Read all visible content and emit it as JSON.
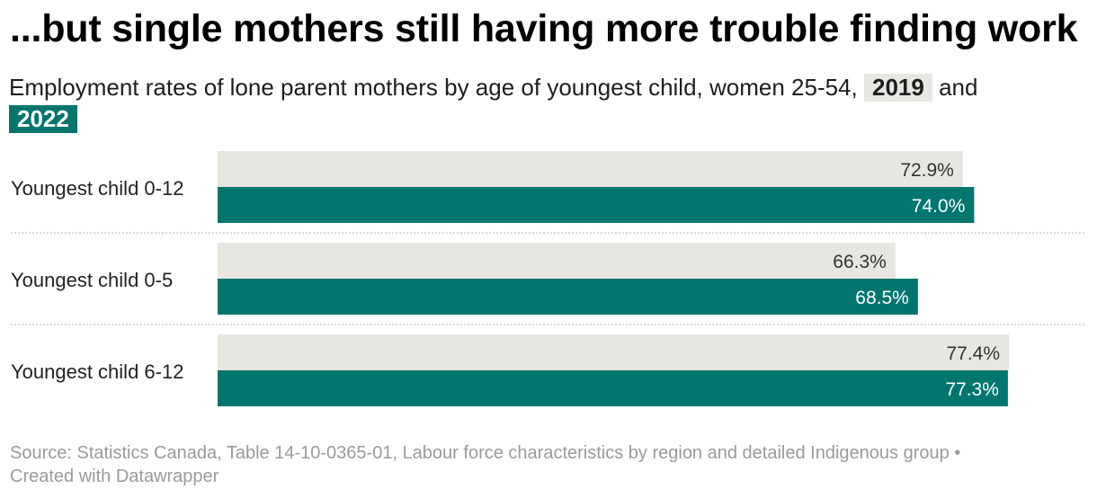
{
  "title": "...but single mothers still having more trouble finding work",
  "subtitle": {
    "prefix": "Employment rates of lone parent mothers by age of youngest child, women 25-54,",
    "year_a": "2019",
    "connector": "and",
    "year_b": "2022"
  },
  "chart_data": {
    "type": "bar",
    "orientation": "horizontal",
    "categories": [
      "Youngest child 0-12",
      "Youngest child 0-5",
      "Youngest child 6-12"
    ],
    "series": [
      {
        "name": "2019",
        "values": [
          72.9,
          66.3,
          77.4
        ],
        "labels": [
          "72.9%",
          "66.3%",
          "77.4%"
        ],
        "color": "#e8e6e1",
        "label_color": "#333333"
      },
      {
        "name": "2022",
        "values": [
          74.0,
          68.5,
          77.3
        ],
        "labels": [
          "74.0%",
          "68.5%",
          "77.3%"
        ],
        "color": "#00766f",
        "label_color": "#ffffff"
      }
    ],
    "xlim": [
      0,
      100
    ],
    "grid": false,
    "legend": "inline in subtitle"
  },
  "footer": {
    "source": "Source: Statistics Canada, Table 14-10-0365-01, Labour force characteristics by region and detailed Indigenous group •",
    "credit": "Created with Datawrapper"
  }
}
